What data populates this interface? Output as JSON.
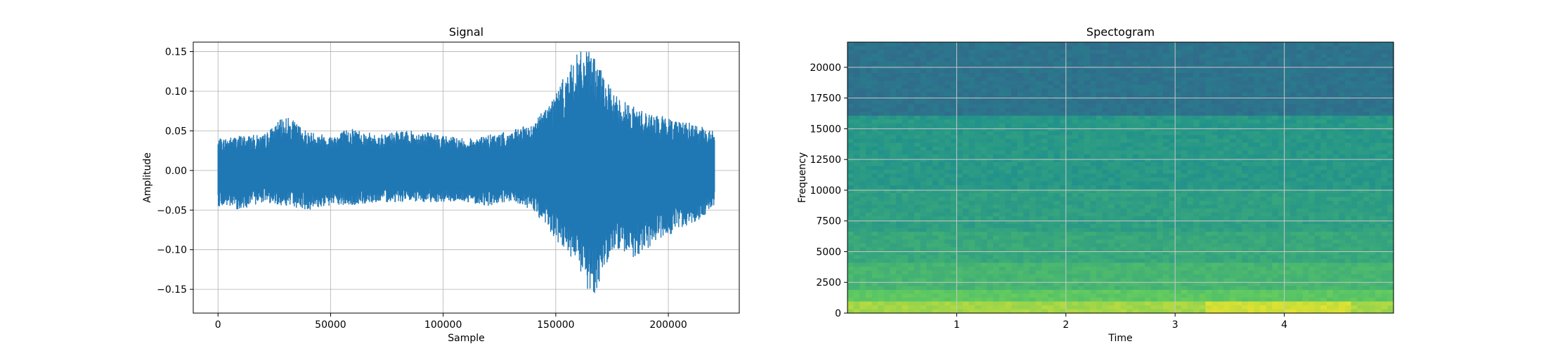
{
  "chart_data": [
    {
      "type": "line",
      "title": "Signal",
      "xlabel": "Sample",
      "ylabel": "Amplitude",
      "xlim": [
        -11000,
        231500
      ],
      "ylim": [
        -0.18,
        0.162
      ],
      "xticks": [
        0,
        50000,
        100000,
        150000,
        200000
      ],
      "xtick_labels": [
        "0",
        "50000",
        "100000",
        "150000",
        "200000"
      ],
      "yticks": [
        -0.15,
        -0.1,
        -0.05,
        0.0,
        0.05,
        0.1,
        0.15
      ],
      "ytick_labels": [
        "−0.15",
        "−0.10",
        "−0.05",
        "0.00",
        "0.05",
        "0.10",
        "0.15"
      ],
      "grid": true,
      "color": "#1f77b4",
      "series": [
        {
          "x_range": [
            0,
            220500
          ],
          "envelope": [
            {
              "x": 0,
              "min": -0.045,
              "max": 0.04
            },
            {
              "x": 10000,
              "min": -0.05,
              "max": 0.045
            },
            {
              "x": 20000,
              "min": -0.04,
              "max": 0.045
            },
            {
              "x": 30000,
              "min": -0.045,
              "max": 0.07
            },
            {
              "x": 40000,
              "min": -0.05,
              "max": 0.05
            },
            {
              "x": 50000,
              "min": -0.045,
              "max": 0.045
            },
            {
              "x": 60000,
              "min": -0.045,
              "max": 0.055
            },
            {
              "x": 70000,
              "min": -0.04,
              "max": 0.045
            },
            {
              "x": 80000,
              "min": -0.04,
              "max": 0.05
            },
            {
              "x": 90000,
              "min": -0.04,
              "max": 0.05
            },
            {
              "x": 100000,
              "min": -0.04,
              "max": 0.045
            },
            {
              "x": 110000,
              "min": -0.04,
              "max": 0.04
            },
            {
              "x": 120000,
              "min": -0.045,
              "max": 0.045
            },
            {
              "x": 130000,
              "min": -0.04,
              "max": 0.05
            },
            {
              "x": 140000,
              "min": -0.05,
              "max": 0.06
            },
            {
              "x": 150000,
              "min": -0.09,
              "max": 0.1
            },
            {
              "x": 160000,
              "min": -0.125,
              "max": 0.15
            },
            {
              "x": 166000,
              "min": -0.165,
              "max": 0.15
            },
            {
              "x": 175000,
              "min": -0.1,
              "max": 0.1
            },
            {
              "x": 185000,
              "min": -0.11,
              "max": 0.08
            },
            {
              "x": 195000,
              "min": -0.09,
              "max": 0.07
            },
            {
              "x": 205000,
              "min": -0.075,
              "max": 0.065
            },
            {
              "x": 215000,
              "min": -0.06,
              "max": 0.055
            },
            {
              "x": 220500,
              "min": -0.045,
              "max": 0.05
            }
          ]
        }
      ]
    },
    {
      "type": "heatmap",
      "title": "Spectogram",
      "xlabel": "Time",
      "ylabel": "Frequency",
      "xlim": [
        0,
        5.0
      ],
      "ylim": [
        0,
        22050
      ],
      "xticks": [
        1,
        2,
        3,
        4
      ],
      "xtick_labels": [
        "1",
        "2",
        "3",
        "4"
      ],
      "yticks": [
        0,
        2500,
        5000,
        7500,
        10000,
        12500,
        15000,
        17500,
        20000
      ],
      "ytick_labels": [
        "0",
        "2500",
        "5000",
        "7500",
        "10000",
        "12500",
        "15000",
        "17500",
        "20000"
      ],
      "grid": true,
      "colormap": "viridis",
      "frequency_bands": [
        {
          "from": 0,
          "to": 800,
          "level": 0.86
        },
        {
          "from": 800,
          "to": 2000,
          "level": 0.74
        },
        {
          "from": 2000,
          "to": 4000,
          "level": 0.66
        },
        {
          "from": 4000,
          "to": 6500,
          "level": 0.6
        },
        {
          "from": 6500,
          "to": 10000,
          "level": 0.56
        },
        {
          "from": 10000,
          "to": 16000,
          "level": 0.53
        },
        {
          "from": 16000,
          "to": 22050,
          "level": 0.38
        }
      ]
    }
  ]
}
